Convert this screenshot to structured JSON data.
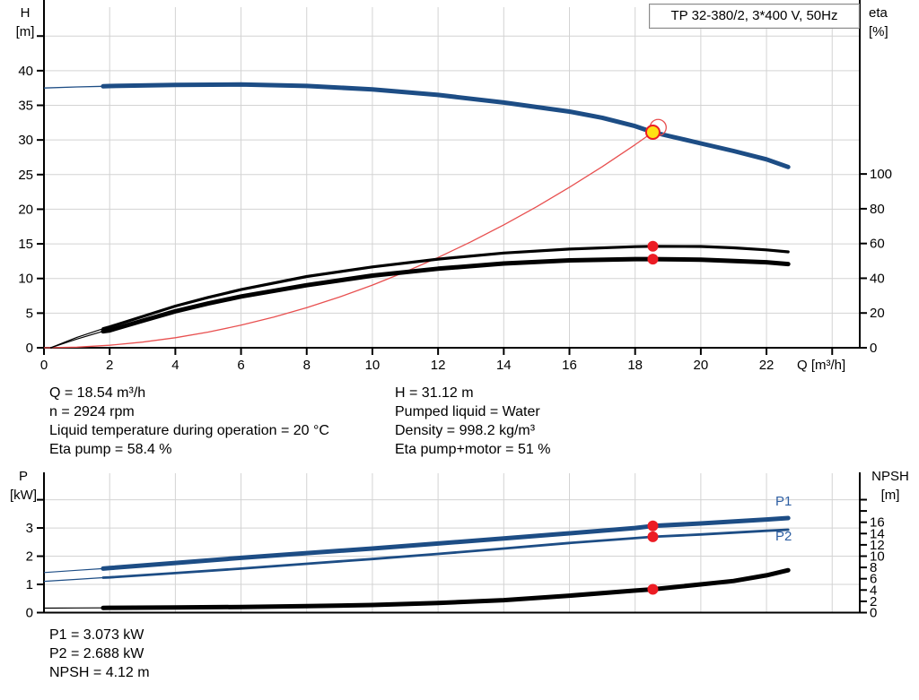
{
  "title_box": {
    "text": "TP 32-380/2, 3*400 V, 50Hz"
  },
  "colors": {
    "curve_blue": "#1d4d85",
    "label_blue": "#2e5fa3",
    "red_curve": "#e85050",
    "red_dot": "#ec1c24",
    "yellow": "#ffe014",
    "grid": "#d3d3d3",
    "axis": "#000000"
  },
  "axis_titles": {
    "top_left_line1": "H",
    "top_left_line2": "[m]",
    "top_right_line1": "eta",
    "top_right_line2": "[%]",
    "bottom_left_line1": "P",
    "bottom_left_line2": "[kW]",
    "bottom_right_line1": "NPSH",
    "bottom_right_line2": "[m]",
    "x_axis": "Q [m³/h]"
  },
  "info_panel": {
    "left": [
      "Q = 18.54 m³/h",
      "n = 2924 rpm",
      "Liquid temperature during operation = 20 °C",
      "Eta pump = 58.4 %"
    ],
    "right": [
      "H = 31.12 m",
      "Pumped liquid = Water",
      "Density = 998.2 kg/m³",
      "Eta pump+motor = 51 %"
    ]
  },
  "results": [
    "P1 = 3.073 kW",
    "P2 = 2.688 kW",
    "NPSH = 4.12 m"
  ],
  "curve_labels": {
    "p1": "P1",
    "p2": "P2"
  },
  "operating_point": {
    "Q_m3h": 18.54,
    "H_m": 31.12,
    "eta_pump_pct": 58.4,
    "eta_pump_motor_pct": 51,
    "P1_kW": 3.073,
    "P2_kW": 2.688,
    "NPSH_m": 4.12,
    "n_rpm": 2924
  },
  "chart_data": [
    {
      "id": "hq-chart",
      "type": "line",
      "title": "TP 32-380/2, 3*400 V, 50Hz",
      "x_axis": {
        "label": "Q [m³/h]",
        "min": 0,
        "max": 24.84,
        "labeled_ticks": [
          0,
          2,
          4,
          6,
          8,
          10,
          12,
          14,
          16,
          18,
          20,
          22
        ],
        "unlabeled_ticks": [
          24
        ],
        "show_labels": true,
        "show_ticks": true
      },
      "y_left": {
        "label": "H [m]",
        "min": 0,
        "max": 49.17,
        "labeled_ticks": [
          0,
          5,
          10,
          15,
          20,
          25,
          30,
          35,
          40
        ],
        "unlabeled_ticks": [
          45
        ],
        "grid": [
          5,
          10,
          15,
          20,
          25,
          30,
          35,
          40,
          45
        ]
      },
      "y_right": {
        "label": "eta [%]",
        "min": 0,
        "max": 196,
        "labeled_ticks": [
          0,
          20,
          40,
          60,
          80,
          100
        ],
        "unlabeled_ticks": []
      },
      "series": [
        {
          "name": "head-curve",
          "axis": "left",
          "color": "#1d4d85",
          "base_width": 1.3,
          "width": 5,
          "thick_from": 1.75,
          "points": [
            [
              0,
              37.5
            ],
            [
              1,
              37.65
            ],
            [
              1.8,
              37.75
            ],
            [
              2,
              37.78
            ],
            [
              4,
              37.95
            ],
            [
              6,
              38.0
            ],
            [
              8,
              37.8
            ],
            [
              10,
              37.3
            ],
            [
              12,
              36.5
            ],
            [
              14,
              35.4
            ],
            [
              16,
              34.1
            ],
            [
              17,
              33.2
            ],
            [
              18,
              32.0
            ],
            [
              18.54,
              31.12
            ],
            [
              19,
              30.6
            ],
            [
              20,
              29.5
            ],
            [
              21,
              28.4
            ],
            [
              22,
              27.2
            ],
            [
              22.66,
              26.1
            ]
          ]
        },
        {
          "name": "system-curve",
          "axis": "left",
          "color": "#e85050",
          "width": 1.3,
          "points": [
            [
              0,
              0
            ],
            [
              1,
              0.09
            ],
            [
              2,
              0.36
            ],
            [
              3,
              0.81
            ],
            [
              4,
              1.45
            ],
            [
              5,
              2.26
            ],
            [
              6,
              3.26
            ],
            [
              7,
              4.43
            ],
            [
              8,
              5.79
            ],
            [
              9,
              7.33
            ],
            [
              10,
              9.05
            ],
            [
              11,
              10.95
            ],
            [
              12,
              13.03
            ],
            [
              13,
              15.3
            ],
            [
              14,
              17.74
            ],
            [
              15,
              20.36
            ],
            [
              16,
              23.17
            ],
            [
              17,
              26.15
            ],
            [
              18,
              29.32
            ],
            [
              18.54,
              31.12
            ]
          ]
        },
        {
          "name": "eta-pump-curve",
          "axis": "right",
          "color": "#000000",
          "base_width": 1.2,
          "width": 3.2,
          "thick_from": 1.75,
          "points": [
            [
              0.2,
              0
            ],
            [
              1,
              6
            ],
            [
              1.8,
              11
            ],
            [
              2,
              12
            ],
            [
              3,
              18
            ],
            [
              4,
              24
            ],
            [
              5,
              29
            ],
            [
              6,
              33.5
            ],
            [
              8,
              41
            ],
            [
              10,
              46.5
            ],
            [
              12,
              51
            ],
            [
              14,
              54.5
            ],
            [
              16,
              56.8
            ],
            [
              18,
              58.2
            ],
            [
              18.54,
              58.4
            ],
            [
              20,
              58.3
            ],
            [
              21,
              57.5
            ],
            [
              22,
              56.3
            ],
            [
              22.66,
              55.2
            ]
          ]
        },
        {
          "name": "eta-pump-motor-curve",
          "axis": "right",
          "color": "#000000",
          "base_width": 1.2,
          "width": 5,
          "thick_from": 1.75,
          "points": [
            [
              0.2,
              0
            ],
            [
              1,
              5
            ],
            [
              1.8,
              9.5
            ],
            [
              2,
              10
            ],
            [
              3,
              15.5
            ],
            [
              4,
              21
            ],
            [
              5,
              25.5
            ],
            [
              6,
              29.5
            ],
            [
              8,
              36
            ],
            [
              10,
              41.5
            ],
            [
              12,
              45.5
            ],
            [
              14,
              48.5
            ],
            [
              16,
              50.3
            ],
            [
              18,
              51
            ],
            [
              18.54,
              51
            ],
            [
              20,
              50.7
            ],
            [
              22,
              49.2
            ],
            [
              22.66,
              48.2
            ]
          ]
        }
      ],
      "markers": [
        {
          "name": "duty-point-ring",
          "style": "ring",
          "axis": "left",
          "x": 18.7,
          "y": 31.8
        },
        {
          "name": "duty-point",
          "style": "duty",
          "axis": "left",
          "x": 18.54,
          "y": 31.12
        },
        {
          "name": "eta-pump-point",
          "style": "red",
          "axis": "right",
          "x": 18.54,
          "y": 58.4
        },
        {
          "name": "eta-pump-motor-point",
          "style": "red",
          "axis": "right",
          "x": 18.54,
          "y": 51
        }
      ]
    },
    {
      "id": "power-npsh-chart",
      "type": "line",
      "title": "",
      "x_axis": {
        "label": "",
        "min": 0,
        "max": 24.84,
        "labeled_ticks": [],
        "unlabeled_ticks": [
          2,
          4,
          6,
          8,
          10,
          12,
          14,
          16,
          18,
          20,
          22,
          24
        ],
        "show_labels": false,
        "show_ticks": false
      },
      "y_left": {
        "label": "P [kW]",
        "min": 0,
        "max": 4.94,
        "labeled_ticks": [
          0,
          1,
          2,
          3
        ],
        "unlabeled_ticks": [
          4
        ],
        "grid": [
          1,
          2,
          3,
          4
        ]
      },
      "y_right": {
        "label": "NPSH [m]",
        "min": 0,
        "max": 24.68,
        "labeled_ticks": [
          0,
          2,
          4,
          6,
          8,
          10,
          12,
          14,
          16
        ],
        "unlabeled_ticks": [
          18,
          20
        ]
      },
      "series": [
        {
          "name": "p1-curve",
          "axis": "left",
          "color": "#1d4d85",
          "base_width": 1.2,
          "width": 5,
          "thick_from": 1.75,
          "points": [
            [
              0,
              1.42
            ],
            [
              1,
              1.5
            ],
            [
              1.8,
              1.56
            ],
            [
              2,
              1.58
            ],
            [
              4,
              1.76
            ],
            [
              6,
              1.94
            ],
            [
              8,
              2.11
            ],
            [
              10,
              2.27
            ],
            [
              12,
              2.45
            ],
            [
              14,
              2.63
            ],
            [
              16,
              2.81
            ],
            [
              18,
              3.0
            ],
            [
              18.54,
              3.073
            ],
            [
              20,
              3.16
            ],
            [
              22,
              3.3
            ],
            [
              22.66,
              3.35
            ]
          ]
        },
        {
          "name": "p2-curve",
          "axis": "left",
          "color": "#1d4d85",
          "base_width": 1.2,
          "width": 2.8,
          "thick_from": 1.75,
          "points": [
            [
              0,
              1.11
            ],
            [
              1,
              1.18
            ],
            [
              1.8,
              1.24
            ],
            [
              2,
              1.25
            ],
            [
              4,
              1.4
            ],
            [
              6,
              1.56
            ],
            [
              8,
              1.73
            ],
            [
              10,
              1.9
            ],
            [
              12,
              2.08
            ],
            [
              14,
              2.27
            ],
            [
              16,
              2.47
            ],
            [
              18,
              2.64
            ],
            [
              18.54,
              2.688
            ],
            [
              20,
              2.77
            ],
            [
              22,
              2.9
            ],
            [
              22.66,
              2.94
            ]
          ]
        },
        {
          "name": "npsh-curve",
          "axis": "right",
          "color": "#000000",
          "base_width": 1.2,
          "width": 5,
          "thick_from": 1.75,
          "points": [
            [
              0,
              0.8
            ],
            [
              1,
              0.82
            ],
            [
              1.8,
              0.84
            ],
            [
              2,
              0.85
            ],
            [
              4,
              0.9
            ],
            [
              6,
              1.0
            ],
            [
              8,
              1.15
            ],
            [
              10,
              1.35
            ],
            [
              12,
              1.7
            ],
            [
              14,
              2.2
            ],
            [
              16,
              3.0
            ],
            [
              18,
              3.9
            ],
            [
              18.54,
              4.12
            ],
            [
              20,
              5.0
            ],
            [
              21,
              5.6
            ],
            [
              22,
              6.6
            ],
            [
              22.66,
              7.5
            ]
          ]
        }
      ],
      "markers": [
        {
          "name": "p1-point",
          "style": "red",
          "axis": "left",
          "x": 18.54,
          "y": 3.073
        },
        {
          "name": "p2-point",
          "style": "red",
          "axis": "left",
          "x": 18.54,
          "y": 2.688
        },
        {
          "name": "npsh-point",
          "style": "red",
          "axis": "right",
          "x": 18.54,
          "y": 4.12
        }
      ]
    }
  ]
}
